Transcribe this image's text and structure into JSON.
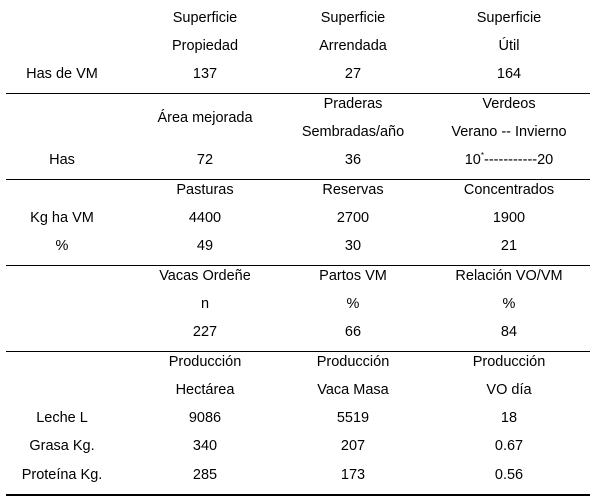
{
  "sections": [
    {
      "rows": [
        [
          "",
          "Superficie",
          "Superficie",
          "Superficie"
        ],
        [
          "",
          "Propiedad",
          "Arrendada",
          "Útil"
        ],
        [
          "Has de VM",
          "137",
          "27",
          "164"
        ]
      ]
    },
    {
      "rows": [
        [
          "",
          "",
          "Praderas",
          "Verdeos"
        ],
        [
          "",
          "Área mejorada",
          "",
          ""
        ],
        [
          "",
          "",
          "Sembradas/año",
          "Verano -- Invierno"
        ],
        [
          "Has",
          "72",
          "36",
          ""
        ]
      ],
      "verdeos_value": {
        "main": "10",
        "sup": "*",
        "rest": "-----------20"
      }
    },
    {
      "rows": [
        [
          "",
          "Pasturas",
          "Reservas",
          "Concentrados"
        ],
        [
          "Kg ha VM",
          "4400",
          "2700",
          "1900"
        ],
        [
          "%",
          "49",
          "30",
          "21"
        ]
      ]
    },
    {
      "rows": [
        [
          "",
          "Vacas Ordeñe",
          "Partos VM",
          "Relación VO/VM"
        ],
        [
          "",
          "n",
          "%",
          "%"
        ],
        [
          "",
          "227",
          "66",
          "84"
        ]
      ]
    },
    {
      "rows": [
        [
          "",
          "Producción",
          "Producción",
          "Producción"
        ],
        [
          "",
          "Hectárea",
          "Vaca Masa",
          "VO día"
        ],
        [
          "Leche L",
          "9086",
          "5519",
          "18"
        ],
        [
          "Grasa Kg.",
          "340",
          "207",
          "0.67"
        ],
        [
          "Proteína Kg.",
          "285",
          "173",
          "0.56"
        ]
      ]
    }
  ]
}
